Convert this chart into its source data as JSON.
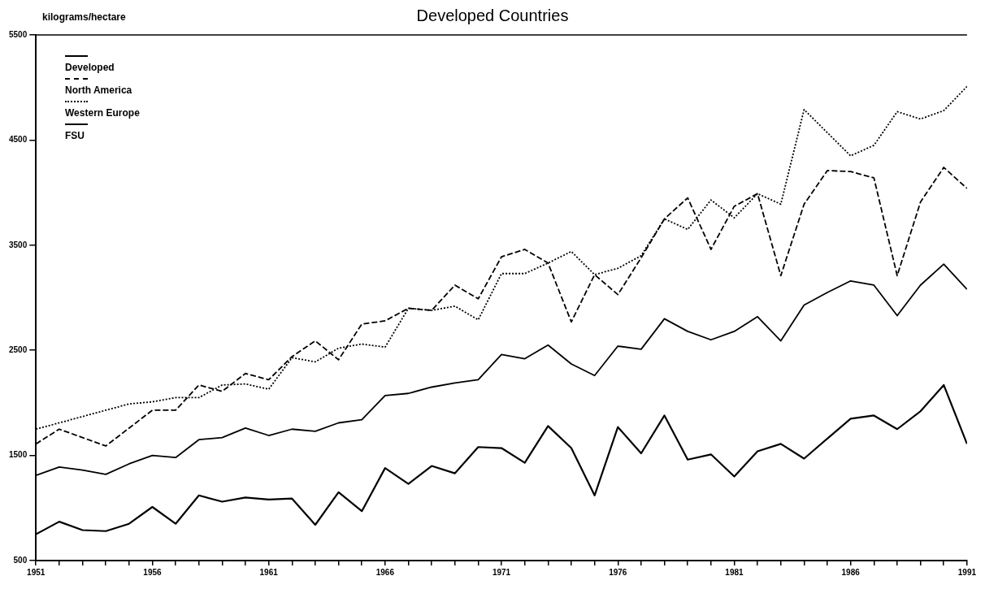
{
  "chart_data": {
    "type": "line",
    "title": "Developed Countries",
    "ylabel": "kilograms/hectare",
    "x": [
      1951,
      1952,
      1953,
      1954,
      1955,
      1956,
      1957,
      1958,
      1959,
      1960,
      1961,
      1962,
      1963,
      1964,
      1965,
      1966,
      1967,
      1968,
      1969,
      1970,
      1971,
      1972,
      1973,
      1974,
      1975,
      1976,
      1977,
      1978,
      1979,
      1980,
      1981,
      1982,
      1983,
      1984,
      1985,
      1986,
      1987,
      1988,
      1989,
      1990,
      1991
    ],
    "xlim": [
      1951,
      1991
    ],
    "xticks": [
      1951,
      {
        "value": 1952,
        "label": null
      },
      {
        "value": 1953,
        "label": null
      },
      {
        "value": 1954,
        "label": null
      },
      {
        "value": 1955,
        "label": null
      },
      1956,
      {
        "value": 1957,
        "label": null
      },
      {
        "value": 1958,
        "label": null
      },
      {
        "value": 1959,
        "label": null
      },
      {
        "value": 1960,
        "label": null
      },
      1961,
      {
        "value": 1962,
        "label": null
      },
      {
        "value": 1963,
        "label": null
      },
      {
        "value": 1964,
        "label": null
      },
      {
        "value": 1965,
        "label": null
      },
      1966,
      {
        "value": 1967,
        "label": null
      },
      {
        "value": 1968,
        "label": null
      },
      {
        "value": 1969,
        "label": null
      },
      {
        "value": 1970,
        "label": null
      },
      1971,
      {
        "value": 1972,
        "label": null
      },
      {
        "value": 1973,
        "label": null
      },
      {
        "value": 1974,
        "label": null
      },
      {
        "value": 1975,
        "label": null
      },
      1976,
      {
        "value": 1977,
        "label": null
      },
      {
        "value": 1978,
        "label": null
      },
      {
        "value": 1979,
        "label": null
      },
      {
        "value": 1980,
        "label": null
      },
      1981,
      {
        "value": 1982,
        "label": null
      },
      {
        "value": 1983,
        "label": null
      },
      {
        "value": 1984,
        "label": null
      },
      {
        "value": 1985,
        "label": null
      },
      1986,
      {
        "value": 1987,
        "label": null
      },
      {
        "value": 1988,
        "label": null
      },
      {
        "value": 1989,
        "label": null
      },
      {
        "value": 1990,
        "label": null
      },
      1991
    ],
    "ylim": [
      500,
      5500
    ],
    "yticks": [
      500,
      1500,
      2500,
      3500,
      4500,
      5500
    ],
    "grid": false,
    "legend": "top left",
    "marker": "none",
    "series": [
      {
        "name": "Developed",
        "color": "#000000",
        "line_style": "solid",
        "values": [
          1310,
          1390,
          1360,
          1320,
          1420,
          1500,
          1480,
          1650,
          1670,
          1760,
          1690,
          1750,
          1730,
          1810,
          1840,
          2070,
          2090,
          2150,
          2190,
          2220,
          2460,
          2420,
          2550,
          2370,
          2260,
          2540,
          2510,
          2800,
          2680,
          2600,
          2680,
          2820,
          2590,
          2930,
          3050,
          3160,
          3120,
          2830,
          3120,
          3320,
          3080
        ]
      },
      {
        "name": "North America",
        "color": "#000000",
        "line_style": "dashed",
        "values": [
          1610,
          1750,
          1670,
          1590,
          1760,
          1930,
          1930,
          2170,
          2110,
          2280,
          2220,
          2440,
          2590,
          2410,
          2750,
          2780,
          2900,
          2880,
          3120,
          2990,
          3390,
          3460,
          3330,
          2770,
          3220,
          3030,
          3380,
          3750,
          3950,
          3460,
          3870,
          3990,
          3210,
          3890,
          4210,
          4200,
          4140,
          3210,
          3910,
          4240,
          4040
        ]
      },
      {
        "name": "Western Europe",
        "color": "#000000",
        "line_style": "dotted",
        "values": [
          1750,
          1810,
          1870,
          1930,
          1990,
          2010,
          2050,
          2050,
          2170,
          2180,
          2130,
          2430,
          2390,
          2520,
          2560,
          2530,
          2900,
          2880,
          2920,
          2790,
          3230,
          3230,
          3330,
          3440,
          3220,
          3280,
          3400,
          3750,
          3650,
          3930,
          3760,
          3990,
          3890,
          4790,
          4570,
          4350,
          4450,
          4770,
          4700,
          4780,
          5010
        ]
      },
      {
        "name": "FSU",
        "color": "#000000",
        "line_style": "solid",
        "values": [
          750,
          870,
          790,
          780,
          850,
          1010,
          850,
          1120,
          1060,
          1100,
          1080,
          1090,
          840,
          1150,
          970,
          1380,
          1230,
          1400,
          1330,
          1580,
          1570,
          1430,
          1780,
          1570,
          1120,
          1770,
          1520,
          1880,
          1460,
          1510,
          1300,
          1540,
          1610,
          1470,
          1660,
          1850,
          1880,
          1750,
          1920,
          2170,
          1610
        ]
      }
    ]
  }
}
